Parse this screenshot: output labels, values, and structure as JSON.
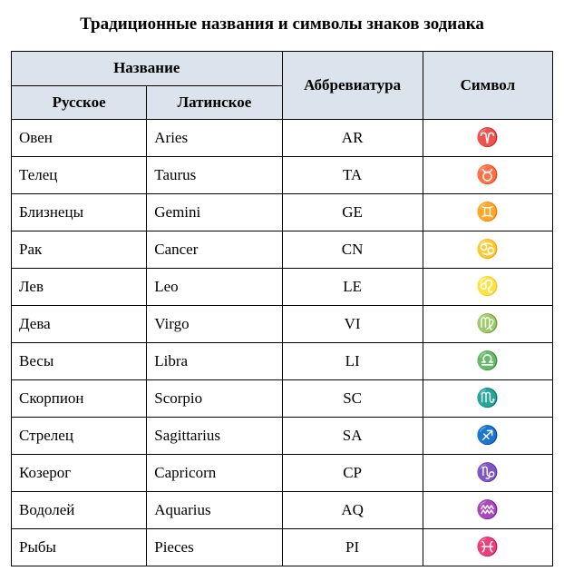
{
  "title": "Традиционные названия и символы знаков зодиака",
  "headers": {
    "name": "Название",
    "abbrev": "Аббревиатура",
    "symbol": "Символ",
    "russian": "Русское",
    "latin": "Латинское"
  },
  "colors": {
    "header_bg": "#dbe4ec",
    "border": "#000000",
    "background": "#ffffff",
    "text": "#000000"
  },
  "typography": {
    "title_fontsize": 19,
    "cell_fontsize": 17,
    "symbol_fontsize": 20,
    "font_family": "Times New Roman"
  },
  "columns": [
    "russian",
    "latin",
    "abbrev",
    "symbol"
  ],
  "rows": [
    {
      "russian": "Овен",
      "latin": "Aries",
      "abbrev": "AR",
      "symbol": "♈"
    },
    {
      "russian": "Телец",
      "latin": "Taurus",
      "abbrev": "TA",
      "symbol": "♉"
    },
    {
      "russian": "Близнецы",
      "latin": "Gemini",
      "abbrev": "GE",
      "symbol": "♊"
    },
    {
      "russian": "Рак",
      "latin": "Cancer",
      "abbrev": "CN",
      "symbol": "♋"
    },
    {
      "russian": "Лев",
      "latin": "Leo",
      "abbrev": "LE",
      "symbol": "♌"
    },
    {
      "russian": "Дева",
      "latin": "Virgo",
      "abbrev": "VI",
      "symbol": "♍"
    },
    {
      "russian": "Весы",
      "latin": "Libra",
      "abbrev": "LI",
      "symbol": "♎"
    },
    {
      "russian": "Скорпион",
      "latin": "Scorpio",
      "abbrev": "SC",
      "symbol": "♏"
    },
    {
      "russian": "Стрелец",
      "latin": "Sagittarius",
      "abbrev": "SA",
      "symbol": "♐"
    },
    {
      "russian": "Козерог",
      "latin": "Capricorn",
      "abbrev": "CP",
      "symbol": "♑"
    },
    {
      "russian": "Водолей",
      "latin": "Aquarius",
      "abbrev": "AQ",
      "symbol": "♒"
    },
    {
      "russian": "Рыбы",
      "latin": "Pieces",
      "abbrev": "PI",
      "symbol": "♓"
    }
  ]
}
